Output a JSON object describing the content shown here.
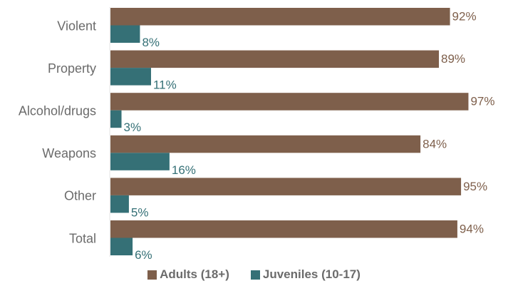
{
  "chart_data": {
    "type": "bar",
    "orientation": "horizontal",
    "categories": [
      "Violent",
      "Property",
      "Alcohol/drugs",
      "Weapons",
      "Other",
      "Total"
    ],
    "series": [
      {
        "name": "Adults (18+)",
        "values": [
          92,
          89,
          97,
          84,
          95,
          94
        ],
        "labels": [
          "92%",
          "89%",
          "97%",
          "84%",
          "95%",
          "94%"
        ],
        "color": "#7e5f4b"
      },
      {
        "name": "Juveniles (10-17)",
        "values": [
          8,
          11,
          3,
          16,
          5,
          6
        ],
        "labels": [
          "8%",
          "11%",
          "3%",
          "16%",
          "5%",
          "6%"
        ],
        "color": "#357076"
      }
    ],
    "xlim": [
      0,
      100
    ],
    "grid": false,
    "legend": "bottom"
  }
}
